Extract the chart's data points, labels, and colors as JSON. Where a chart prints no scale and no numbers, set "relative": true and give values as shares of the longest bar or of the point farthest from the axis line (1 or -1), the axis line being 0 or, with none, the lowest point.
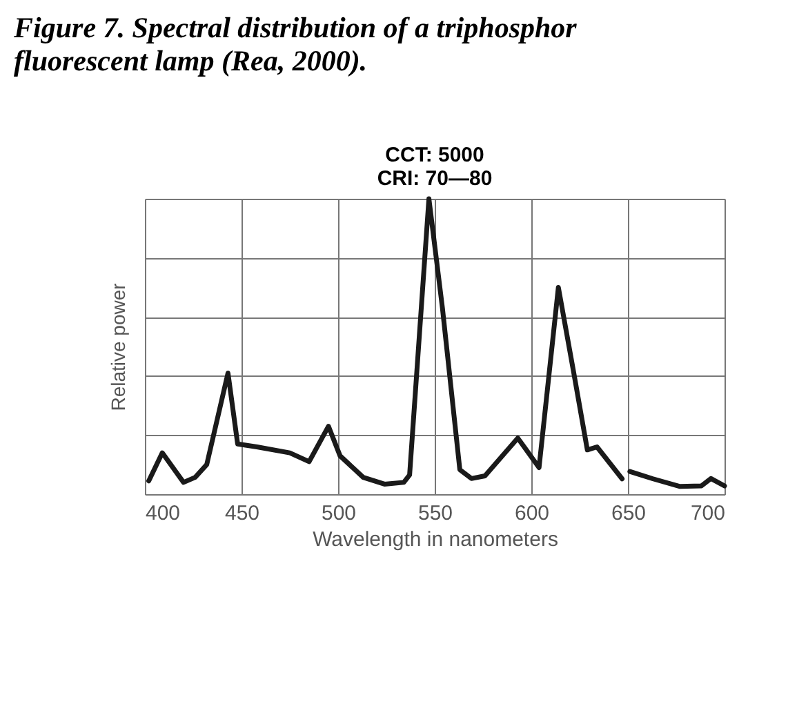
{
  "chart_data": {
    "type": "line",
    "title": "Figure 7. Spectral distribution of a triphosphor fluorescent lamp (Rea, 2000).",
    "subtitle": "CCT: 5000\nCRI: 70—80",
    "xlabel": "Wavelength in nanometers",
    "ylabel": "Relative power",
    "relative": true,
    "xlim": [
      400,
      700
    ],
    "xticks": [
      400,
      450,
      500,
      550,
      600,
      650,
      700
    ],
    "grid": true,
    "series": [
      {
        "color": "#1a1a1a",
        "x": [
          402,
          409,
          420,
          426,
          432,
          443,
          448,
          458,
          475,
          485,
          495,
          501,
          513,
          524,
          534,
          537,
          547,
          554,
          563,
          569,
          576,
          593,
          604,
          614,
          622,
          629,
          634,
          647,
          648.5,
          651,
          663,
          677,
          688,
          693,
          700
        ],
        "values": [
          0.045,
          0.14,
          0.04,
          0.057,
          0.1,
          0.41,
          0.17,
          0.16,
          0.14,
          0.11,
          0.23,
          0.13,
          0.057,
          0.034,
          0.04,
          0.065,
          1.0,
          0.63,
          0.083,
          0.053,
          0.062,
          0.19,
          0.09,
          0.7,
          0.41,
          0.15,
          0.16,
          0.052,
          null,
          0.077,
          0.052,
          0.026,
          0.028,
          0.053,
          0.028
        ]
      }
    ]
  }
}
